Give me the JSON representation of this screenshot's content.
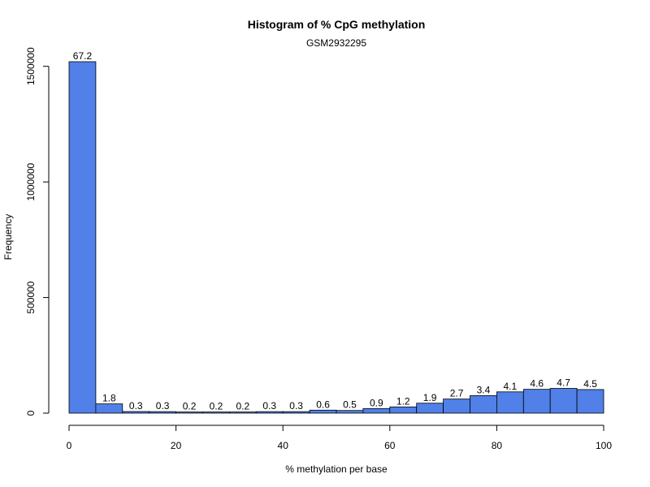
{
  "chart_data": {
    "type": "bar",
    "title": "Histogram of % CpG methylation",
    "subtitle": "GSM2932295",
    "xlabel": "% methylation per base",
    "ylabel": "Frequency",
    "bin_edges": [
      0,
      5,
      10,
      15,
      20,
      25,
      30,
      35,
      40,
      45,
      50,
      55,
      60,
      65,
      70,
      75,
      80,
      85,
      90,
      95,
      100
    ],
    "values": [
      1520000,
      40000,
      7000,
      6500,
      5000,
      5000,
      5000,
      6500,
      6500,
      13000,
      11500,
      20000,
      27000,
      43000,
      61000,
      76000,
      92000,
      103000,
      107000,
      102000
    ],
    "labels": [
      "67.2",
      "1.8",
      "0.3",
      "0.3",
      "0.2",
      "0.2",
      "0.2",
      "0.3",
      "0.3",
      "0.6",
      "0.5",
      "0.9",
      "1.2",
      "1.9",
      "2.7",
      "3.4",
      "4.1",
      "4.6",
      "4.7",
      "4.5"
    ],
    "xlim": [
      0,
      100
    ],
    "ylim": [
      0,
      1520000
    ],
    "xticks": [
      0,
      20,
      40,
      60,
      80,
      100
    ],
    "xtick_labels": [
      "0",
      "20",
      "40",
      "60",
      "80",
      "100"
    ],
    "yticks": [
      0,
      500000,
      1000000,
      1500000
    ],
    "ytick_labels": [
      "0",
      "500000",
      "1000000",
      "1500000"
    ],
    "bar_color": "#5080e8",
    "bar_edge_color": "#000000",
    "grid": false,
    "legend": "none"
  }
}
